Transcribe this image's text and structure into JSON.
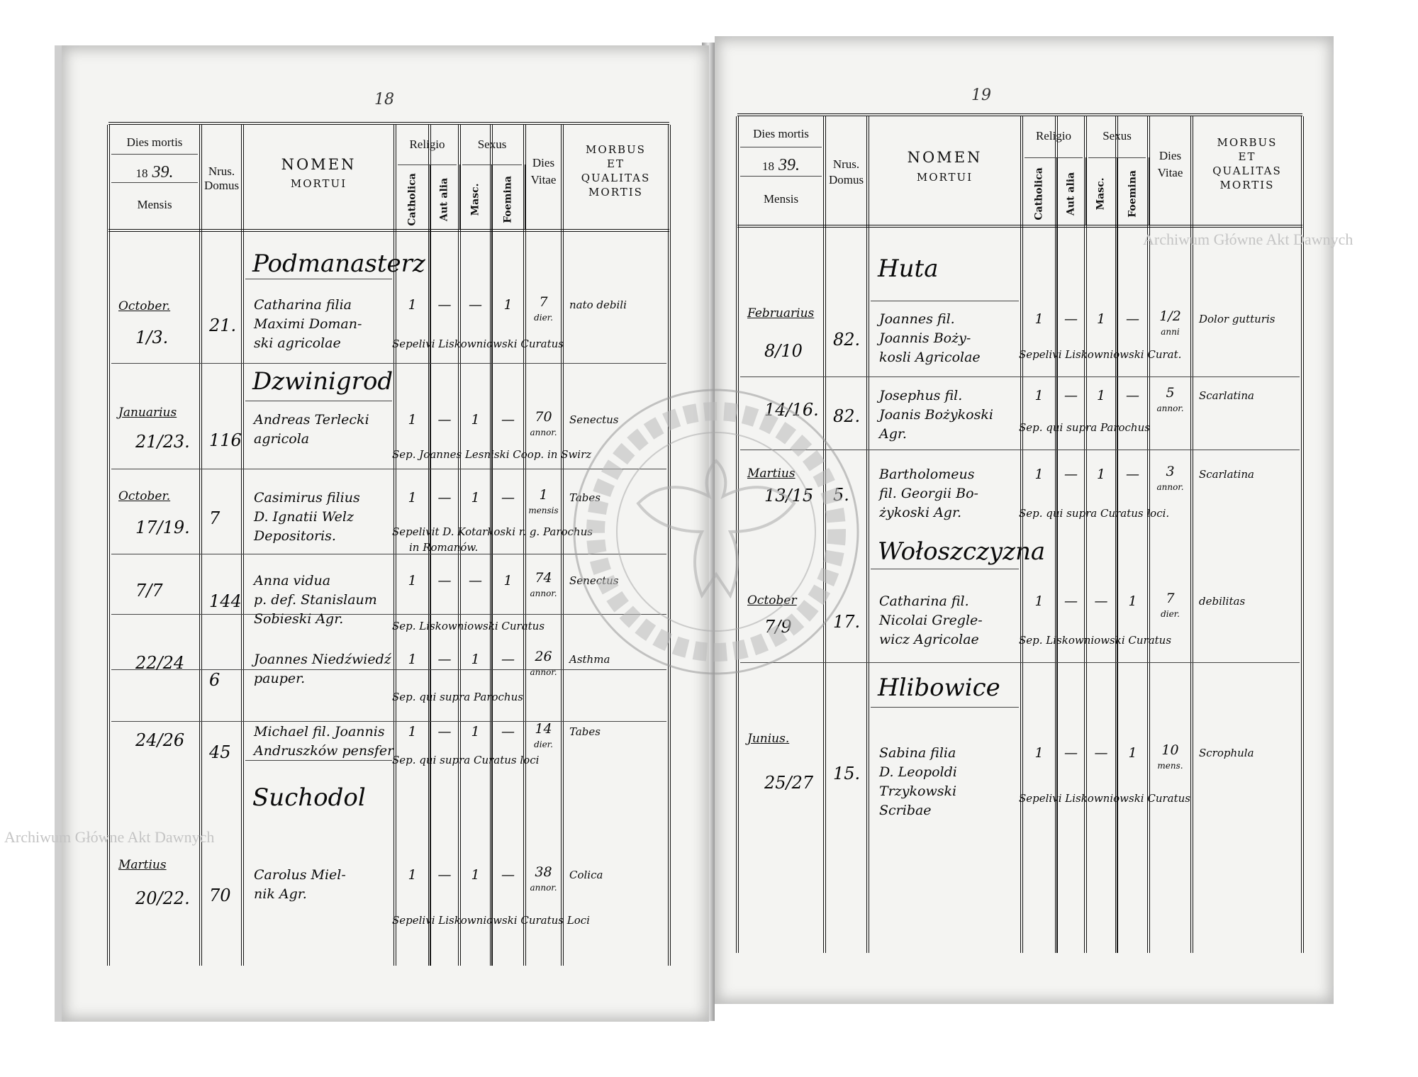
{
  "watermark": {
    "text": "Archiwum Główne Akt Dawnych",
    "stamp_text": "ARCHIWUM GŁÓWNE AKT DAWNYCH"
  },
  "header": {
    "dies_mortis": "Dies mortis",
    "year_prefix": "18",
    "year_hand": "39.",
    "mensis": "Mensis",
    "nrus": "Nrus.",
    "domus": "Domus",
    "nomen": "NOMEN",
    "mortui": "MORTUI",
    "religio": "Religio",
    "catholica": "Catholica",
    "aut_alia": "Aut alia",
    "sexus": "Sexus",
    "masc": "Masc.",
    "foemina": "Foemina",
    "dies": "Dies",
    "vitae": "Vitae",
    "morbus": "MORBUS",
    "et": "ET",
    "qualitas": "QUALITAS",
    "mortis": "MORTIS"
  },
  "left_page": {
    "page_number": "18",
    "villages": [
      "Podmanasterz",
      "Dzwinigrod",
      "Suchodol"
    ],
    "entries": [
      {
        "month": "October.",
        "day": "1/3.",
        "nr": "21.",
        "name": [
          "Catharina filia",
          "Maximi Doman-",
          "ski agricolae"
        ],
        "catholica": "1",
        "aut_alia": "—",
        "masc": "—",
        "foemina": "1",
        "dies_vitae": "7",
        "dies_unit": "dier.",
        "morbus": "nato debili",
        "burial": [
          "Sepelivi Liskowniowski Curatus"
        ]
      },
      {
        "month": "Januarius",
        "day": "21/23.",
        "nr": "116",
        "name": [
          "Andreas Terlecki",
          "agricola"
        ],
        "catholica": "1",
        "aut_alia": "—",
        "masc": "1",
        "foemina": "—",
        "dies_vitae": "70",
        "dies_unit": "annor.",
        "morbus": "Senectus",
        "burial": [
          "Sep. Joannes Lesniski Coop. in Swirz"
        ]
      },
      {
        "month": "October.",
        "day": "17/19.",
        "nr": "7",
        "name": [
          "Casimirus filius",
          "D. Ignatii Welz",
          "Depositoris."
        ],
        "catholica": "1",
        "aut_alia": "—",
        "masc": "1",
        "foemina": "—",
        "dies_vitae": "1",
        "dies_unit": "mensis",
        "morbus": "Tabes",
        "burial": [
          "Sepelivit D. Kotarkoski r. g. Parochus",
          "in Romanów."
        ]
      },
      {
        "month": "",
        "day": "7/7",
        "nr": "144",
        "name": [
          "Anna vidua",
          "p. def. Stanislaum",
          "Sobieski Agr."
        ],
        "catholica": "1",
        "aut_alia": "—",
        "masc": "—",
        "foemina": "1",
        "dies_vitae": "74",
        "dies_unit": "annor.",
        "morbus": "Senectus",
        "burial": [
          "Sep. Liskowniowski Curatus"
        ]
      },
      {
        "month": "",
        "day": "22/24",
        "nr": "6",
        "name": [
          "Joannes Niedźwiedź",
          "pauper."
        ],
        "catholica": "1",
        "aut_alia": "—",
        "masc": "1",
        "foemina": "—",
        "dies_vitae": "26",
        "dies_unit": "annor.",
        "morbus": "Asthma",
        "burial": [
          "Sep. qui supra Parochus"
        ]
      },
      {
        "month": "",
        "day": "24/26",
        "nr": "45",
        "name": [
          "Michael fil. Joannis",
          "Andruszków pensfer"
        ],
        "catholica": "1",
        "aut_alia": "—",
        "masc": "1",
        "foemina": "—",
        "dies_vitae": "14",
        "dies_unit": "dier.",
        "morbus": "Tabes",
        "burial": [
          "Sep. qui supra Curatus loci"
        ]
      },
      {
        "month": "Martius",
        "day": "20/22.",
        "nr": "70",
        "name": [
          "Carolus Miel-",
          "nik Agr."
        ],
        "catholica": "1",
        "aut_alia": "—",
        "masc": "1",
        "foemina": "—",
        "dies_vitae": "38",
        "dies_unit": "annor.",
        "morbus": "Colica",
        "burial": [
          "Sepelivi Liskowniowski Curatus Loci"
        ]
      }
    ]
  },
  "right_page": {
    "page_number": "19",
    "villages": [
      "Huta",
      "Wołoszczyzna",
      "Hlibowice"
    ],
    "entries": [
      {
        "month": "Februarius",
        "day": "8/10",
        "nr": "82.",
        "name": [
          "Joannes fil.",
          "Joannis Boży-",
          "kosli Agricolae"
        ],
        "catholica": "1",
        "aut_alia": "—",
        "masc": "1",
        "foemina": "—",
        "dies_vitae": "1/2",
        "dies_unit": "anni",
        "morbus": "Dolor gutturis",
        "burial": [
          "Sepelivi Liskowniowski Curat."
        ]
      },
      {
        "month": "",
        "day": "14/16.",
        "nr": "82.",
        "name": [
          "Josephus fil.",
          "Joanis Bożykoski",
          "Agr."
        ],
        "catholica": "1",
        "aut_alia": "—",
        "masc": "1",
        "foemina": "—",
        "dies_vitae": "5",
        "dies_unit": "annor.",
        "morbus": "Scarlatina",
        "burial": [
          "Sep. qui supra Parochus"
        ]
      },
      {
        "month": "Martius",
        "day": "13/15",
        "nr": "5.",
        "name": [
          "Bartholomeus",
          "fil. Georgii Bo-",
          "żykoski Agr."
        ],
        "catholica": "1",
        "aut_alia": "—",
        "masc": "1",
        "foemina": "—",
        "dies_vitae": "3",
        "dies_unit": "annor.",
        "morbus": "Scarlatina",
        "burial": [
          "Sep. qui supra Curatus loci."
        ]
      },
      {
        "month": "October",
        "day": "7/9",
        "nr": "17.",
        "name": [
          "Catharina fil.",
          "Nicolai Gregle-",
          "wicz Agricolae"
        ],
        "catholica": "1",
        "aut_alia": "—",
        "masc": "—",
        "foemina": "1",
        "dies_vitae": "7",
        "dies_unit": "dier.",
        "morbus": "debilitas",
        "burial": [
          "Sep. Liskowniowski Curatus"
        ]
      },
      {
        "month": "Junius.",
        "day": "25/27",
        "nr": "15.",
        "name": [
          "Sabina filia",
          "D. Leopoldi",
          "Trzykowski",
          "Scribae"
        ],
        "catholica": "1",
        "aut_alia": "—",
        "masc": "—",
        "foemina": "1",
        "dies_vitae": "10",
        "dies_unit": "mens.",
        "morbus": "Scrophula",
        "burial": [
          "Sepelivi Liskowniowski Curatus"
        ]
      }
    ]
  }
}
